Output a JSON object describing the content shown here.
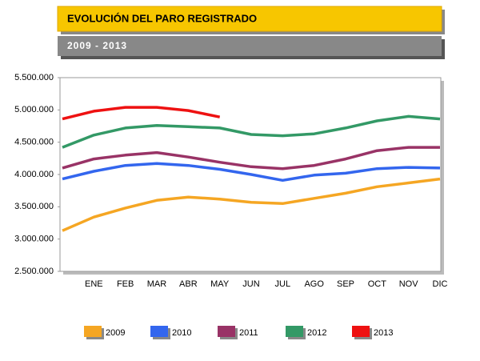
{
  "chart_data": {
    "type": "line",
    "title": "EVOLUCIÓN DEL PARO REGISTRADO",
    "subtitle": "2009 - 2013",
    "categories": [
      null,
      "ENE",
      "FEB",
      "MAR",
      "ABR",
      "MAY",
      "JUN",
      "JUL",
      "AGO",
      "SEP",
      "OCT",
      "NOV",
      "DIC"
    ],
    "series": [
      {
        "name": "2009",
        "color": "#f5a623",
        "values": [
          3130000,
          3340000,
          3480000,
          3600000,
          3650000,
          3620000,
          3570000,
          3550000,
          3630000,
          3710000,
          3810000,
          3870000,
          3930000
        ]
      },
      {
        "name": "2010",
        "color": "#3366ee",
        "values": [
          3930000,
          4050000,
          4140000,
          4170000,
          4140000,
          4080000,
          4000000,
          3910000,
          3990000,
          4020000,
          4090000,
          4110000,
          4100000
        ]
      },
      {
        "name": "2011",
        "color": "#993366",
        "values": [
          4100000,
          4240000,
          4300000,
          4340000,
          4270000,
          4190000,
          4120000,
          4090000,
          4140000,
          4240000,
          4370000,
          4420000,
          4420000
        ]
      },
      {
        "name": "2012",
        "color": "#339966",
        "values": [
          4420000,
          4610000,
          4720000,
          4760000,
          4740000,
          4720000,
          4620000,
          4600000,
          4630000,
          4720000,
          4830000,
          4900000,
          4860000
        ]
      },
      {
        "name": "2013",
        "color": "#ee1111",
        "values": [
          4860000,
          4980000,
          5040000,
          5040000,
          4990000,
          4890000,
          null,
          null,
          null,
          null,
          null,
          null,
          null
        ]
      }
    ],
    "ylim": [
      2500000,
      5500000
    ],
    "yticks": [
      {
        "value": 2500000,
        "label": "2.500.000"
      },
      {
        "value": 3000000,
        "label": "3.000.000"
      },
      {
        "value": 3500000,
        "label": "3.500.000"
      },
      {
        "value": 4000000,
        "label": "4.000.000"
      },
      {
        "value": 4500000,
        "label": "4.500.000"
      },
      {
        "value": 5000000,
        "label": "5.000.000"
      },
      {
        "value": 5500000,
        "label": "5.500.000"
      }
    ],
    "grid": false,
    "legend": "bottom"
  }
}
